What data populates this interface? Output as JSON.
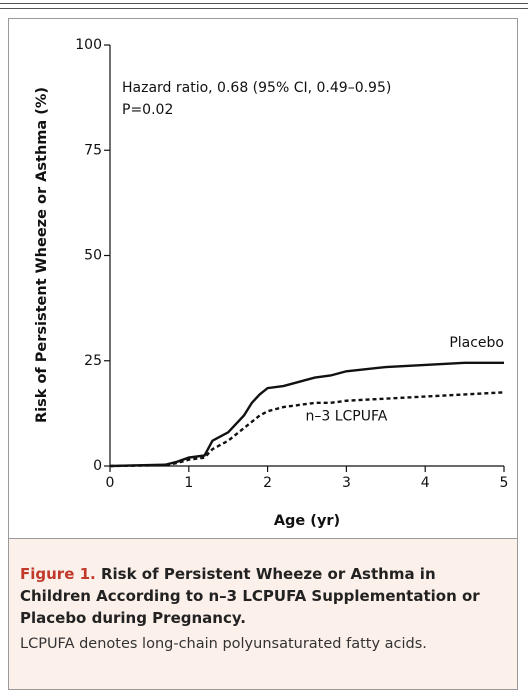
{
  "chart_data": {
    "type": "line",
    "xlabel": "Age (yr)",
    "ylabel": "Risk of Persistent Wheeze or Asthma (%)",
    "annotations": [
      "Hazard ratio, 0.68 (95% CI, 0.49–0.95)",
      "P=0.02"
    ],
    "x": [
      0,
      0.7,
      0.85,
      1.0,
      1.2,
      1.3,
      1.5,
      1.7,
      1.8,
      1.9,
      2.0,
      2.2,
      2.4,
      2.6,
      2.8,
      3.0,
      3.5,
      4.0,
      4.5,
      5.0
    ],
    "series": [
      {
        "name": "Placebo",
        "color": "#111111",
        "style": "solid",
        "values": [
          0,
          0.3,
          1,
          2,
          2.5,
          6,
          8,
          12,
          15,
          17,
          18.5,
          19,
          20,
          21,
          21.5,
          22.5,
          23.5,
          24,
          24.5,
          24.5
        ]
      },
      {
        "name": "n–3 LCPUFA",
        "color": "#111111",
        "style": "dashed",
        "values": [
          0,
          0.2,
          0.7,
          1.5,
          2,
          4,
          6,
          9,
          10.5,
          12,
          13,
          14,
          14.5,
          15,
          15,
          15.5,
          16,
          16.5,
          17,
          17.5
        ]
      }
    ],
    "xlim": [
      0,
      5
    ],
    "xticks": [
      0,
      1,
      2,
      3,
      4,
      5
    ],
    "ylim": [
      0,
      100
    ],
    "yticks": [
      0,
      25,
      50,
      75,
      100
    ],
    "grid": false
  },
  "caption": {
    "label": "Figure 1.",
    "title": "Risk of Persistent Wheeze or Asthma in Children According to n–3 LCPUFA Supplementation or Placebo during Pregnancy.",
    "note": "LCPUFA denotes long-chain polyunsaturated fatty acids."
  }
}
